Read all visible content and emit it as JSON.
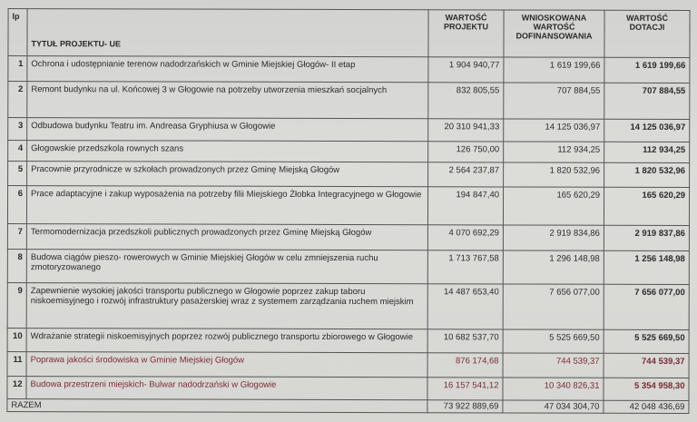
{
  "header": {
    "lp": "lp",
    "title": "TYTUŁ PROJEKTU- UE",
    "value": "WARTOŚĆ PROJEKTU",
    "requested": "WNIOSKOWANA WARTOŚĆ DOFINANSOWANIA",
    "grant": "WARTOŚĆ DOTACJI"
  },
  "accent_color": "#7a2a35",
  "rows": [
    {
      "lp": "1",
      "title": "Ochrona i udostępnianie terenow nadodrzańskich w Gminie Miejskiej Głogów- II etap",
      "value": "1 904 940,77",
      "requested": "1 619 199,66",
      "grant": "1 619 199,66"
    },
    {
      "lp": "2",
      "title": "Remont budynku na ul. Końcowej 3 w Głogowie na potrzeby utworzenia mieszkań socjalnych",
      "value": "832 805,55",
      "requested": "707 884,55",
      "grant": "707 884,55"
    },
    {
      "lp": "3",
      "title": "Odbudowa budynku Teatru im. Andreasa Gryphiusa w Głogowie",
      "value": "20 310 941,33",
      "requested": "14 125 036,97",
      "grant": "14 125 036,97"
    },
    {
      "lp": "4",
      "title": "Głogowskie przedszkola rownych szans",
      "value": "126 750,00",
      "requested": "112 934,25",
      "grant": "112 934,25"
    },
    {
      "lp": "5",
      "title": "Pracownie przyrodnicze w szkołach prowadzonych przez Gminę Miejską Głogów",
      "value": "2 564 237,87",
      "requested": "1 820 532,96",
      "grant": "1 820 532,96"
    },
    {
      "lp": "6",
      "title": "Prace adaptacyjne i zakup wyposażenia na potrzeby filii Miejskiego Żłobka Integracyjnego w Głogowie",
      "value": "194 847,40",
      "requested": "165 620,29",
      "grant": "165 620,29"
    },
    {
      "lp": "7",
      "title": "Termomodernizacja przedszkoli publicznych prowadzonych przez Gminę Miejską Głogów",
      "value": "4 070 692,29",
      "requested": "2 919 834,86",
      "grant": "2 919 837,86"
    },
    {
      "lp": "8",
      "title": "Budowa ciągów pieszo- rowerowych w Gminie Miejskiej Głogów w celu zmniejszenia ruchu zmotoryzowanego",
      "value": "1 713 767,58",
      "requested": "1 296 148,98",
      "grant": "1 256 148,98"
    },
    {
      "lp": "9",
      "title": "Zapewnienie wysokiej jakości transportu publicznego w Głogowie poprzez zakup taboru niskoemisyjnego i rozwój infrastruktury pasażerskiej wraz z systemem zarządzania ruchem miejskim",
      "value": "14 487 653,40",
      "requested": "7 656 077,00",
      "grant": "7 656 077,00"
    },
    {
      "lp": "10",
      "title": "Wdrażanie strategii niskoemisyjnych poprzez rozwój publicznego transportu zbiorowego w Głogowie",
      "value": "10 682 537,70",
      "requested": "5 525 669,50",
      "grant": "5 525 669,50"
    },
    {
      "lp": "11",
      "title": "Poprawa jakości środowiska w Gminie Miejskiej Głogów",
      "value": "876 174,68",
      "requested": "744 539,37",
      "grant": "744 539,37",
      "highlight": true
    },
    {
      "lp": "12",
      "title": "Budowa przestrzeni miejskich- Bulwar nadodrzański w Głogowie",
      "value": "16 157 541,12",
      "requested": "10 340 826,31",
      "grant": "5 354 958,30",
      "highlight": true
    }
  ],
  "total": {
    "label": "RAZEM",
    "value": "73 922 889,69",
    "requested": "47 034 304,70",
    "grant": "42 048 436,69"
  }
}
